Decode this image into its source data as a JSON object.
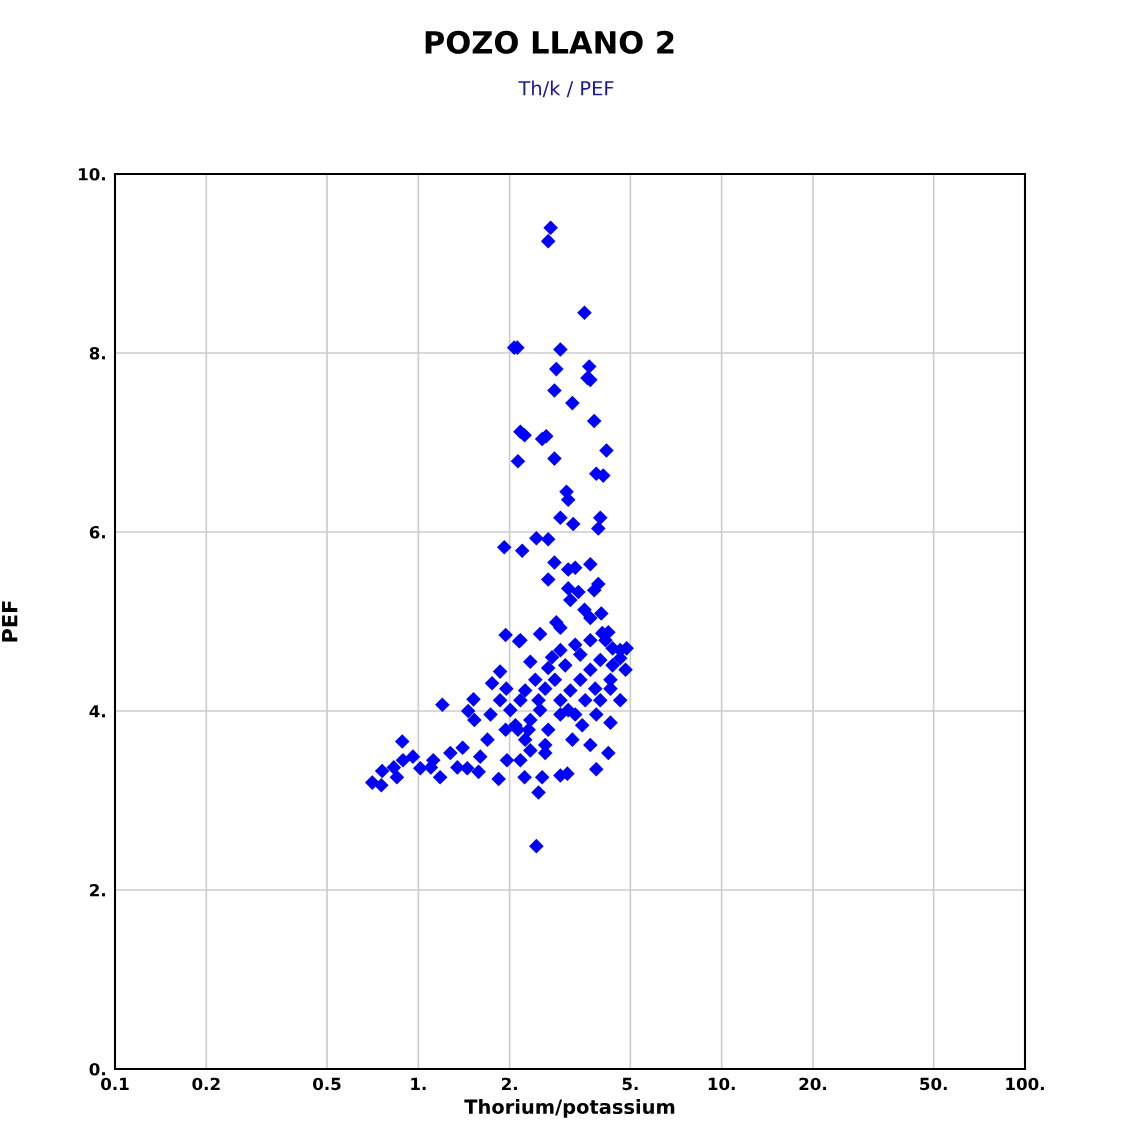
{
  "chart_data": {
    "type": "scatter",
    "title": "POZO LLANO 2",
    "subtitle": "Th/k / PEF",
    "xlabel": "Thorium/potassium",
    "ylabel": "PEF",
    "log": "x",
    "grid": true,
    "marker": "diamond",
    "xlim": [
      0.1,
      100
    ],
    "ylim": [
      0,
      10
    ],
    "xticks": [
      0.1,
      0.2,
      0.5,
      {
        "value": 1,
        "label": "1."
      },
      {
        "value": 2,
        "label": "2."
      },
      {
        "value": 5,
        "label": "5."
      },
      {
        "value": 10,
        "label": "10."
      },
      {
        "value": 20,
        "label": "20."
      },
      {
        "value": 50,
        "label": "50."
      },
      {
        "value": 100,
        "label": "100."
      }
    ],
    "yticks": [
      {
        "value": 0,
        "label": "0."
      },
      {
        "value": 2,
        "label": "2."
      },
      {
        "value": 4,
        "label": "4."
      },
      {
        "value": 6,
        "label": "6."
      },
      {
        "value": 8,
        "label": "8."
      },
      {
        "value": 10,
        "label": "10."
      }
    ],
    "series": [
      {
        "color": "#0000ff",
        "x": [
          2.73,
          2.68,
          3.53,
          2.07,
          2.12,
          2.94,
          2.85,
          3.66,
          3.61,
          3.69,
          2.81,
          3.22,
          3.8,
          2.17,
          2.24,
          2.64,
          2.56,
          2.13,
          2.81,
          4.17,
          3.86,
          4.07,
          3.12,
          3.08,
          2.94,
          3.24,
          3.98,
          3.92,
          1.92,
          2.2,
          2.45,
          2.68,
          2.81,
          3.12,
          3.29,
          3.69,
          2.68,
          3.92,
          3.8,
          3.12,
          3.17,
          3.37,
          3.53,
          4.01,
          3.69,
          4.04,
          4.23,
          2.85,
          2.94,
          1.94,
          2.15,
          2.52,
          2.76,
          2.34,
          4.37,
          4.86,
          4.63,
          2.17,
          1.86,
          1.75,
          1.95,
          1.2,
          1.52,
          1.46,
          1.53,
          0.885,
          0.705,
          0.755,
          0.76,
          0.85,
          0.96,
          1.1,
          1.18,
          1.275,
          1.4,
          1.45,
          1.58,
          1.84,
          1.69,
          1.6,
          1.96,
          2.17,
          2.24,
          2.49,
          2.45,
          2.56,
          2.94,
          3.1,
          3.86,
          4.23,
          3.69,
          4.3,
          3.22,
          2.62,
          2.34,
          0.89,
          1.015,
          1.345,
          0.83,
          1.12,
          2.17,
          2.34,
          2.52,
          2.68,
          2.94,
          3.17,
          3.42,
          3.69,
          3.98,
          4.3,
          4.63,
          3.98,
          3.55,
          3.29,
          2.94,
          2.62,
          2.43,
          2.25,
          2.01,
          2.09,
          2.25,
          2.62,
          2.82,
          3.05,
          3.42,
          3.83,
          4.14,
          3.69,
          3.29,
          2.94,
          2.68,
          2.49,
          2.31,
          2.13,
          4.63,
          4.37,
          4.82,
          3.12,
          3.47,
          3.86,
          1.94,
          1.86,
          1.73,
          4.3
        ],
        "values": [
          9.4,
          9.25,
          8.45,
          8.06,
          8.06,
          8.04,
          7.82,
          7.85,
          7.72,
          7.7,
          7.58,
          7.44,
          7.24,
          7.12,
          7.08,
          7.07,
          7.04,
          6.79,
          6.82,
          6.91,
          6.65,
          6.63,
          6.36,
          6.45,
          6.16,
          6.09,
          6.16,
          6.04,
          5.83,
          5.79,
          5.93,
          5.92,
          5.66,
          5.58,
          5.6,
          5.64,
          5.47,
          5.42,
          5.35,
          5.37,
          5.24,
          5.33,
          5.13,
          5.09,
          5.04,
          4.87,
          4.88,
          4.99,
          4.93,
          4.85,
          4.78,
          4.86,
          4.6,
          4.55,
          4.7,
          4.7,
          4.59,
          4.79,
          4.44,
          4.31,
          4.25,
          4.07,
          4.13,
          4.0,
          3.9,
          3.66,
          3.2,
          3.17,
          3.33,
          3.26,
          3.49,
          3.37,
          3.26,
          3.53,
          3.59,
          3.36,
          3.32,
          3.24,
          3.68,
          3.49,
          3.45,
          3.45,
          3.26,
          3.09,
          2.49,
          3.26,
          3.28,
          3.3,
          3.35,
          3.53,
          3.62,
          3.87,
          3.68,
          3.53,
          3.56,
          3.45,
          3.36,
          3.37,
          3.37,
          3.45,
          4.12,
          3.9,
          4.01,
          3.79,
          4.12,
          4.23,
          4.35,
          4.46,
          4.57,
          4.35,
          4.68,
          4.12,
          4.12,
          3.96,
          3.96,
          4.25,
          4.35,
          4.23,
          4.01,
          3.84,
          3.68,
          3.62,
          4.35,
          4.51,
          4.63,
          4.25,
          4.79,
          4.79,
          4.74,
          4.68,
          4.48,
          4.12,
          3.79,
          3.79,
          4.12,
          4.51,
          4.46,
          4.01,
          3.84,
          3.96,
          3.79,
          4.12,
          3.96,
          4.25
        ]
      }
    ]
  }
}
